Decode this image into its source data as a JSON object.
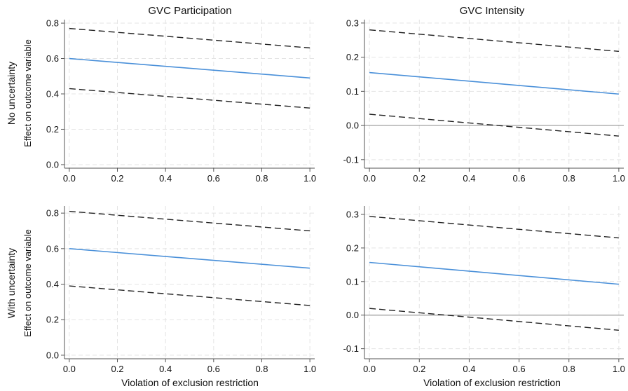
{
  "figure": {
    "column_titles": [
      "GVC Participation",
      "GVC Intensity"
    ],
    "row_labels": [
      "No uncertainty",
      "With uncertainty"
    ],
    "ylabel": "Effect on outcome variable",
    "xlabel": "Violation of exclusion restriction"
  },
  "colors": {
    "estimate_line": "#4a90d9",
    "ci_line": "#222222",
    "zero_line": "#9a9a9a",
    "grid": "#e4e4e4",
    "axis": "#555555"
  },
  "chart_data": [
    {
      "type": "line",
      "panel": "no-uncertainty-participation",
      "x": [
        0.0,
        1.0
      ],
      "xlim": [
        -0.02,
        1.02
      ],
      "ylim": [
        -0.02,
        0.82
      ],
      "xticks": [
        "0.0",
        "0.2",
        "0.4",
        "0.6",
        "0.8",
        "1.0"
      ],
      "yticks": [
        "0.0",
        "0.2",
        "0.4",
        "0.6",
        "0.8"
      ],
      "grid": true,
      "zero_line": false,
      "series": [
        {
          "role": "estimate",
          "style": "solid",
          "values": [
            0.6,
            0.49
          ]
        },
        {
          "role": "upper-bound",
          "style": "dashed",
          "values": [
            0.77,
            0.66
          ]
        },
        {
          "role": "lower-bound",
          "style": "dashed",
          "values": [
            0.43,
            0.32
          ]
        }
      ]
    },
    {
      "type": "line",
      "panel": "no-uncertainty-intensity",
      "x": [
        0.0,
        1.0
      ],
      "xlim": [
        -0.02,
        1.02
      ],
      "ylim": [
        -0.125,
        0.31
      ],
      "xticks": [
        "0.0",
        "0.2",
        "0.4",
        "0.6",
        "0.8",
        "1.0"
      ],
      "yticks": [
        "-0.1",
        "0.0",
        "0.1",
        "0.2",
        "0.3"
      ],
      "grid": true,
      "zero_line": true,
      "series": [
        {
          "role": "estimate",
          "style": "solid",
          "values": [
            0.155,
            0.092
          ]
        },
        {
          "role": "upper-bound",
          "style": "dashed",
          "values": [
            0.28,
            0.217
          ]
        },
        {
          "role": "lower-bound",
          "style": "dashed",
          "values": [
            0.033,
            -0.031
          ]
        }
      ]
    },
    {
      "type": "line",
      "panel": "with-uncertainty-participation",
      "x": [
        0.0,
        1.0
      ],
      "xlim": [
        -0.02,
        1.02
      ],
      "ylim": [
        -0.02,
        0.84
      ],
      "xticks": [
        "0.0",
        "0.2",
        "0.4",
        "0.6",
        "0.8",
        "1.0"
      ],
      "yticks": [
        "0.0",
        "0.2",
        "0.4",
        "0.6",
        "0.8"
      ],
      "grid": true,
      "zero_line": false,
      "series": [
        {
          "role": "estimate",
          "style": "solid",
          "values": [
            0.6,
            0.49
          ]
        },
        {
          "role": "upper-bound",
          "style": "dashed",
          "values": [
            0.81,
            0.7
          ]
        },
        {
          "role": "lower-bound",
          "style": "dashed",
          "values": [
            0.39,
            0.28
          ]
        }
      ]
    },
    {
      "type": "line",
      "panel": "with-uncertainty-intensity",
      "x": [
        0.0,
        1.0
      ],
      "xlim": [
        -0.02,
        1.02
      ],
      "ylim": [
        -0.13,
        0.325
      ],
      "xticks": [
        "0.0",
        "0.2",
        "0.4",
        "0.6",
        "0.8",
        "1.0"
      ],
      "yticks": [
        "-0.1",
        "0.0",
        "0.1",
        "0.2",
        "0.3"
      ],
      "grid": true,
      "zero_line": true,
      "series": [
        {
          "role": "estimate",
          "style": "solid",
          "values": [
            0.157,
            0.092
          ]
        },
        {
          "role": "upper-bound",
          "style": "dashed",
          "values": [
            0.294,
            0.23
          ]
        },
        {
          "role": "lower-bound",
          "style": "dashed",
          "values": [
            0.02,
            -0.045
          ]
        }
      ]
    }
  ]
}
